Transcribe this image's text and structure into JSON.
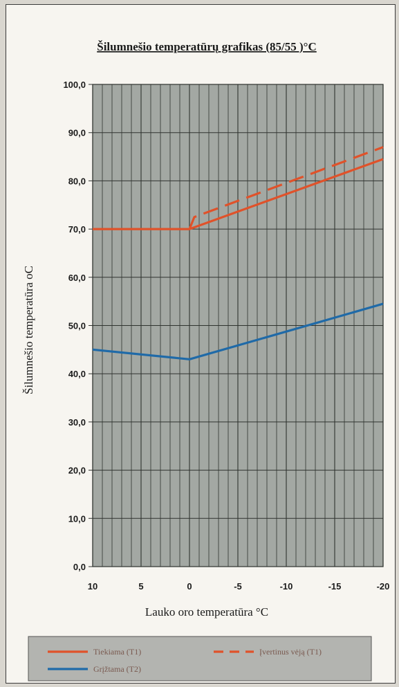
{
  "chart_data": {
    "type": "line",
    "title": "Šilumnešio temperatūrų grafikas (85/55 )°C",
    "xlabel": "Lauko oro temperatūra °C",
    "ylabel": "Šilumnešio temperatūra oC",
    "xlim": [
      10,
      -20
    ],
    "ylim": [
      0,
      100
    ],
    "x_ticks": [
      "10",
      "5",
      "0",
      "-5",
      "-10",
      "-15",
      "-20"
    ],
    "x_tick_values": [
      10,
      5,
      0,
      -5,
      -10,
      -15,
      -20
    ],
    "y_ticks": [
      "0,0",
      "10,0",
      "20,0",
      "30,0",
      "40,0",
      "50,0",
      "60,0",
      "70,0",
      "80,0",
      "90,0",
      "100,0"
    ],
    "y_tick_values": [
      0,
      10,
      20,
      30,
      40,
      50,
      60,
      70,
      80,
      90,
      100
    ],
    "grid": true,
    "legend_position": "bottom",
    "series": [
      {
        "name": "Tiekiama (T1)",
        "color": "#e0522a",
        "style": "solid",
        "x": [
          10,
          0,
          -20
        ],
        "y": [
          70,
          70,
          84.5
        ]
      },
      {
        "name": "Įvertinus vėją (T1)",
        "color": "#e0522a",
        "style": "dashed",
        "x": [
          0,
          -0.5,
          -20
        ],
        "y": [
          70,
          72.5,
          87
        ]
      },
      {
        "name": "Grįžtama (T2)",
        "color": "#1f6aa8",
        "style": "solid",
        "x": [
          10,
          0,
          -20
        ],
        "y": [
          45,
          43,
          54.5
        ]
      }
    ]
  }
}
